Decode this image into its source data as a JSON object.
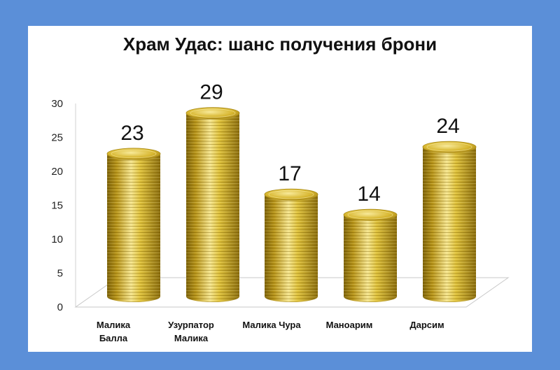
{
  "chart_data": {
    "type": "bar",
    "title": "Храм Удас: шанс получения брони",
    "categories": [
      [
        "Малика",
        "Балла"
      ],
      [
        "Узурпатор",
        "Малика"
      ],
      [
        "Малика Чура"
      ],
      [
        "Маноарим"
      ],
      [
        "Дарсим"
      ]
    ],
    "values": [
      23,
      29,
      17,
      14,
      24
    ],
    "ylim": [
      0,
      30
    ],
    "yticks": [
      0,
      5,
      10,
      15,
      20,
      25,
      30
    ],
    "grid": false,
    "legend": "none",
    "colors": {
      "bar": "#d4b22a",
      "bar_dark": "#7d6208",
      "bar_light": "#f6e690",
      "background": "#5b8fd8"
    }
  }
}
